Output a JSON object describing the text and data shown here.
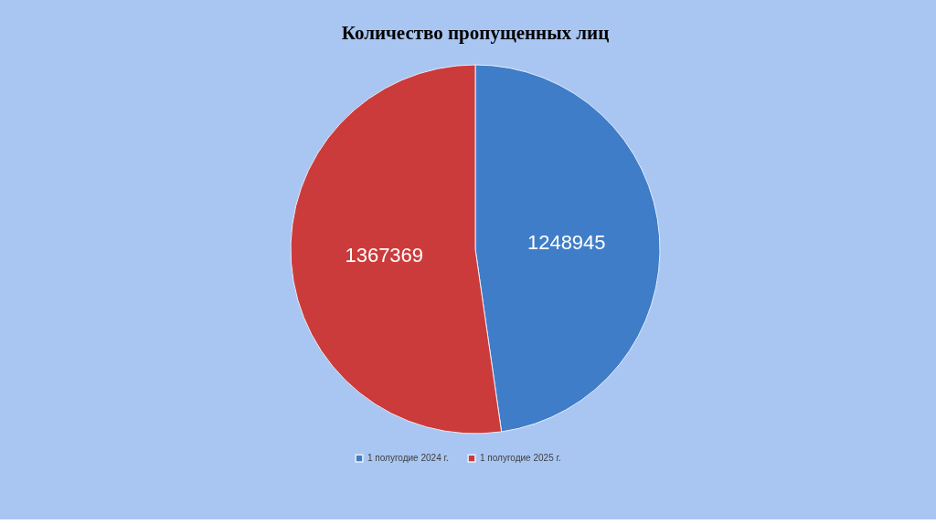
{
  "chart_data": {
    "type": "pie",
    "title": "Количество пропущенных лиц",
    "categories": [
      "1 полугодие 2024 г.",
      "1 полугодие 2025 г."
    ],
    "values": [
      1248945,
      1367369
    ],
    "colors": [
      "#3f7dc8",
      "#cc3b3b"
    ],
    "data_labels": true,
    "legend": "bottom"
  }
}
